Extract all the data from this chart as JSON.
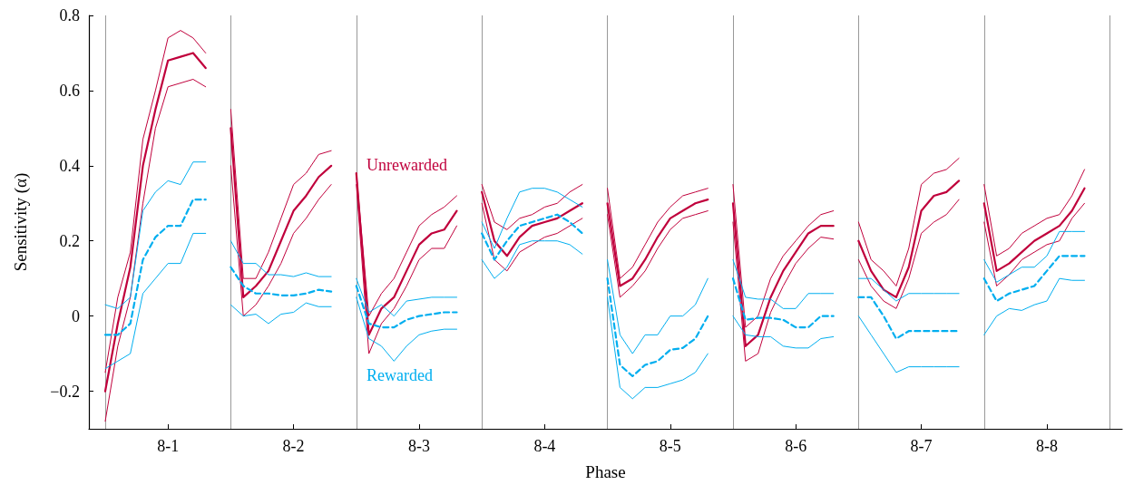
{
  "chart_data": {
    "type": "line",
    "xlabel": "Phase",
    "ylabel": "Sensitivity (α)",
    "categories": [
      null,
      null,
      null,
      null,
      null,
      "8-1",
      null,
      null,
      null,
      null,
      null,
      null,
      null,
      null,
      null,
      "8-2",
      null,
      null,
      null,
      null,
      null,
      null,
      null,
      null,
      null,
      "8-3",
      null,
      null,
      null,
      null,
      null,
      null,
      null,
      null,
      null,
      "8-4",
      null,
      null,
      null,
      null,
      null,
      null,
      null,
      null,
      null,
      "8-5",
      null,
      null,
      null,
      null,
      null,
      null,
      null,
      null,
      null,
      "8-6",
      null,
      null,
      null,
      null,
      null,
      null,
      null,
      null,
      null,
      "8-7",
      null,
      null,
      null,
      null,
      null,
      null,
      null,
      null,
      null,
      "8-8",
      null,
      null,
      null,
      null
    ],
    "ylim": [
      -0.3,
      0.8
    ],
    "yticks": [
      {
        "value": -0.2,
        "label": "−0.2"
      },
      0,
      0.2,
      0.4,
      0.6,
      0.8
    ],
    "grid": "x",
    "marker": "none",
    "series": [
      {
        "name": "Unrewarded",
        "color": "#c0003c",
        "line_style": "solid",
        "values": [
          -0.2,
          -0.02,
          0.13,
          0.4,
          0.55,
          0.68,
          0.69,
          0.7,
          0.66,
          null,
          0.5,
          0.05,
          0.08,
          0.12,
          0.2,
          0.28,
          0.32,
          0.37,
          0.4,
          null,
          0.38,
          -0.05,
          0.02,
          0.05,
          0.12,
          0.19,
          0.22,
          0.23,
          0.28,
          null,
          0.33,
          0.2,
          0.16,
          0.21,
          0.24,
          0.25,
          0.26,
          0.28,
          0.3,
          null,
          0.3,
          0.08,
          0.1,
          0.15,
          0.21,
          0.26,
          0.28,
          0.3,
          0.31,
          null,
          0.3,
          -0.08,
          -0.05,
          0.05,
          0.12,
          0.17,
          0.22,
          0.24,
          0.24,
          null,
          0.2,
          0.12,
          0.07,
          0.05,
          0.13,
          0.28,
          0.32,
          0.33,
          0.36,
          null,
          0.3,
          0.12,
          0.14,
          0.17,
          0.2,
          0.22,
          0.24,
          0.28,
          0.34,
          null
        ]
      },
      {
        "color": "#c0003c",
        "line_style": "solid",
        "values": [
          -0.15,
          0.05,
          0.17,
          0.47,
          0.6,
          0.74,
          0.76,
          0.74,
          0.7,
          null,
          0.55,
          0.1,
          0.1,
          0.17,
          0.26,
          0.35,
          0.38,
          0.43,
          0.44,
          null,
          0.38,
          0.0,
          0.06,
          0.1,
          0.17,
          0.24,
          0.27,
          0.29,
          0.32,
          null,
          0.35,
          0.25,
          0.23,
          0.26,
          0.27,
          0.29,
          0.3,
          0.33,
          0.35,
          null,
          0.34,
          0.1,
          0.13,
          0.19,
          0.25,
          0.29,
          0.32,
          0.33,
          0.34,
          null,
          0.35,
          -0.03,
          0.0,
          0.1,
          0.16,
          0.2,
          0.24,
          0.27,
          0.28,
          null,
          0.25,
          0.15,
          0.12,
          0.08,
          0.18,
          0.35,
          0.38,
          0.39,
          0.42,
          null,
          0.35,
          0.16,
          0.18,
          0.22,
          0.24,
          0.26,
          0.27,
          0.32,
          0.39,
          null
        ]
      },
      {
        "color": "#c0003c",
        "line_style": "solid",
        "values": [
          -0.28,
          -0.08,
          0.05,
          0.3,
          0.5,
          0.61,
          0.62,
          0.63,
          0.61,
          null,
          0.4,
          0.0,
          0.03,
          0.08,
          0.14,
          0.22,
          0.26,
          0.31,
          0.35,
          null,
          0.35,
          -0.1,
          -0.02,
          0.02,
          0.08,
          0.15,
          0.18,
          0.18,
          0.24,
          null,
          0.3,
          0.15,
          0.12,
          0.17,
          0.19,
          0.21,
          0.22,
          0.24,
          0.26,
          null,
          0.27,
          0.05,
          0.08,
          0.12,
          0.18,
          0.23,
          0.26,
          0.27,
          0.28,
          null,
          0.25,
          -0.12,
          -0.1,
          0.01,
          0.08,
          0.14,
          0.18,
          0.21,
          0.205,
          null,
          0.15,
          0.08,
          0.04,
          0.02,
          0.1,
          0.22,
          0.25,
          0.27,
          0.31,
          null,
          0.25,
          0.08,
          0.11,
          0.15,
          0.17,
          0.19,
          0.2,
          0.26,
          0.3,
          null
        ]
      },
      {
        "name": "Rewarded",
        "color": "#00aeef",
        "line_style": "dashed",
        "values": [
          -0.05,
          -0.05,
          -0.02,
          0.15,
          0.21,
          0.24,
          0.24,
          0.31,
          0.31,
          null,
          0.13,
          0.08,
          0.06,
          0.06,
          0.055,
          0.055,
          0.06,
          0.07,
          0.065,
          null,
          0.08,
          -0.02,
          -0.03,
          -0.03,
          -0.01,
          0.0,
          0.005,
          0.01,
          0.01,
          null,
          0.22,
          0.15,
          0.2,
          0.24,
          0.25,
          0.26,
          0.27,
          0.25,
          0.22,
          null,
          0.1,
          -0.13,
          -0.16,
          -0.13,
          -0.12,
          -0.09,
          -0.085,
          -0.06,
          0.0,
          null,
          0.1,
          -0.01,
          -0.005,
          -0.005,
          -0.01,
          -0.03,
          -0.03,
          0.0,
          0.0,
          null,
          0.05,
          0.05,
          0.0,
          -0.06,
          -0.04,
          -0.04,
          -0.04,
          -0.04,
          -0.04,
          null,
          0.1,
          0.04,
          0.06,
          0.07,
          0.08,
          0.12,
          0.16,
          0.16,
          0.16,
          null
        ]
      },
      {
        "color": "#00aeef",
        "line_style": "solid",
        "values": [
          0.03,
          0.02,
          0.05,
          0.28,
          0.33,
          0.36,
          0.35,
          0.41,
          0.41,
          null,
          0.2,
          0.14,
          0.14,
          0.11,
          0.11,
          0.105,
          0.115,
          0.105,
          0.105,
          null,
          0.1,
          0.01,
          0.03,
          0.0,
          0.04,
          0.045,
          0.05,
          0.05,
          0.05,
          null,
          0.25,
          0.18,
          0.26,
          0.33,
          0.34,
          0.34,
          0.33,
          0.31,
          0.29,
          null,
          0.15,
          -0.05,
          -0.1,
          -0.05,
          -0.05,
          0.0,
          0.0,
          0.03,
          0.1,
          null,
          0.15,
          0.05,
          0.045,
          0.045,
          0.02,
          0.02,
          0.06,
          0.06,
          0.06,
          null,
          0.1,
          0.1,
          0.07,
          0.04,
          0.06,
          0.06,
          0.06,
          0.06,
          0.06,
          null,
          0.15,
          0.09,
          0.11,
          0.13,
          0.13,
          0.16,
          0.225,
          0.225,
          0.225,
          null
        ]
      },
      {
        "color": "#00aeef",
        "line_style": "solid",
        "values": [
          -0.14,
          -0.12,
          -0.1,
          0.06,
          0.1,
          0.14,
          0.14,
          0.22,
          0.22,
          null,
          0.03,
          0.0,
          0.005,
          -0.02,
          0.005,
          0.01,
          0.035,
          0.025,
          0.025,
          null,
          0.05,
          -0.06,
          -0.08,
          -0.12,
          -0.08,
          -0.05,
          -0.04,
          -0.035,
          -0.035,
          null,
          0.15,
          0.1,
          0.13,
          0.19,
          0.2,
          0.2,
          0.2,
          0.19,
          0.165,
          null,
          0.05,
          -0.19,
          -0.22,
          -0.19,
          -0.19,
          -0.18,
          -0.17,
          -0.15,
          -0.1,
          null,
          0.0,
          -0.05,
          -0.055,
          -0.055,
          -0.08,
          -0.085,
          -0.085,
          -0.06,
          -0.055,
          null,
          0.0,
          -0.05,
          -0.1,
          -0.15,
          -0.135,
          -0.135,
          -0.135,
          -0.135,
          -0.135,
          null,
          -0.05,
          0.0,
          0.02,
          0.015,
          0.03,
          0.04,
          0.1,
          0.095,
          0.095,
          null
        ]
      }
    ]
  }
}
